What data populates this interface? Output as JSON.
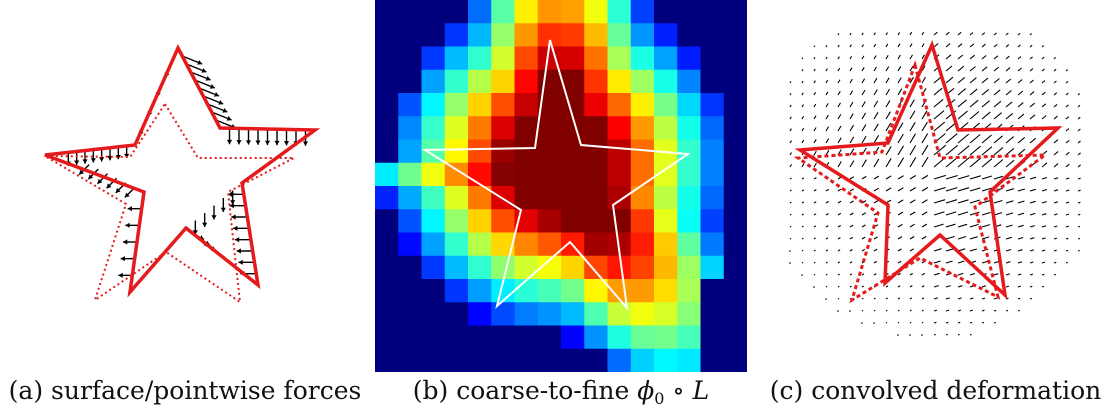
{
  "panels": [
    {
      "id": "a",
      "caption": "(a) surface/pointwise forces"
    },
    {
      "id": "b",
      "caption_prefix": "(b) coarse-to-fine ",
      "phi": "ϕ",
      "phi_sub": "0",
      "compose": " ∘ ",
      "L": "L"
    },
    {
      "id": "c",
      "caption": "(c) convolved deformation"
    }
  ],
  "colors": {
    "contour": "#e41a1c",
    "arrow": "#000000",
    "outline_white": "#ffffff",
    "colormap": "jet",
    "background_outer": "#00007f"
  }
}
